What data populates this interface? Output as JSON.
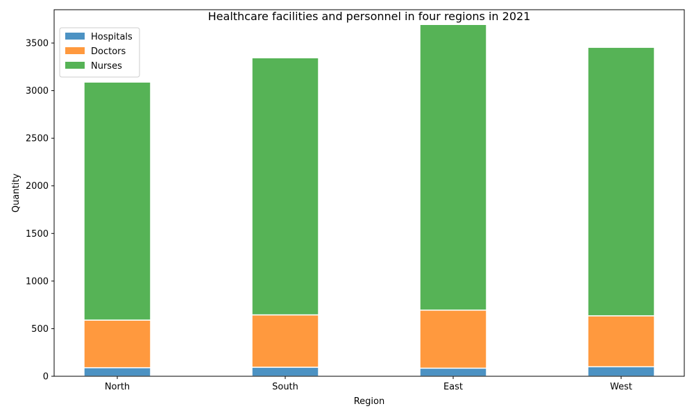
{
  "chart_data": {
    "type": "bar",
    "stacked": true,
    "title": "Healthcare facilities and personnel in four regions in 2021",
    "xlabel": "Region",
    "ylabel": "Quantity",
    "categories": [
      "North",
      "South",
      "East",
      "West"
    ],
    "series": [
      {
        "name": "Hospitals",
        "color": "#1f77b4",
        "values": [
          90,
          95,
          85,
          100
        ]
      },
      {
        "name": "Doctors",
        "color": "#ff7f0e",
        "values": [
          500,
          550,
          610,
          535
        ]
      },
      {
        "name": "Nurses",
        "color": "#2ca02c",
        "values": [
          2500,
          2700,
          3000,
          2820
        ]
      }
    ],
    "ylim": [
      0,
      3850
    ],
    "yticks": [
      0,
      500,
      1000,
      1500,
      2000,
      2500,
      3000,
      3500
    ],
    "legend_position": "upper-left",
    "grid": false,
    "bar_opacity": 0.8
  }
}
